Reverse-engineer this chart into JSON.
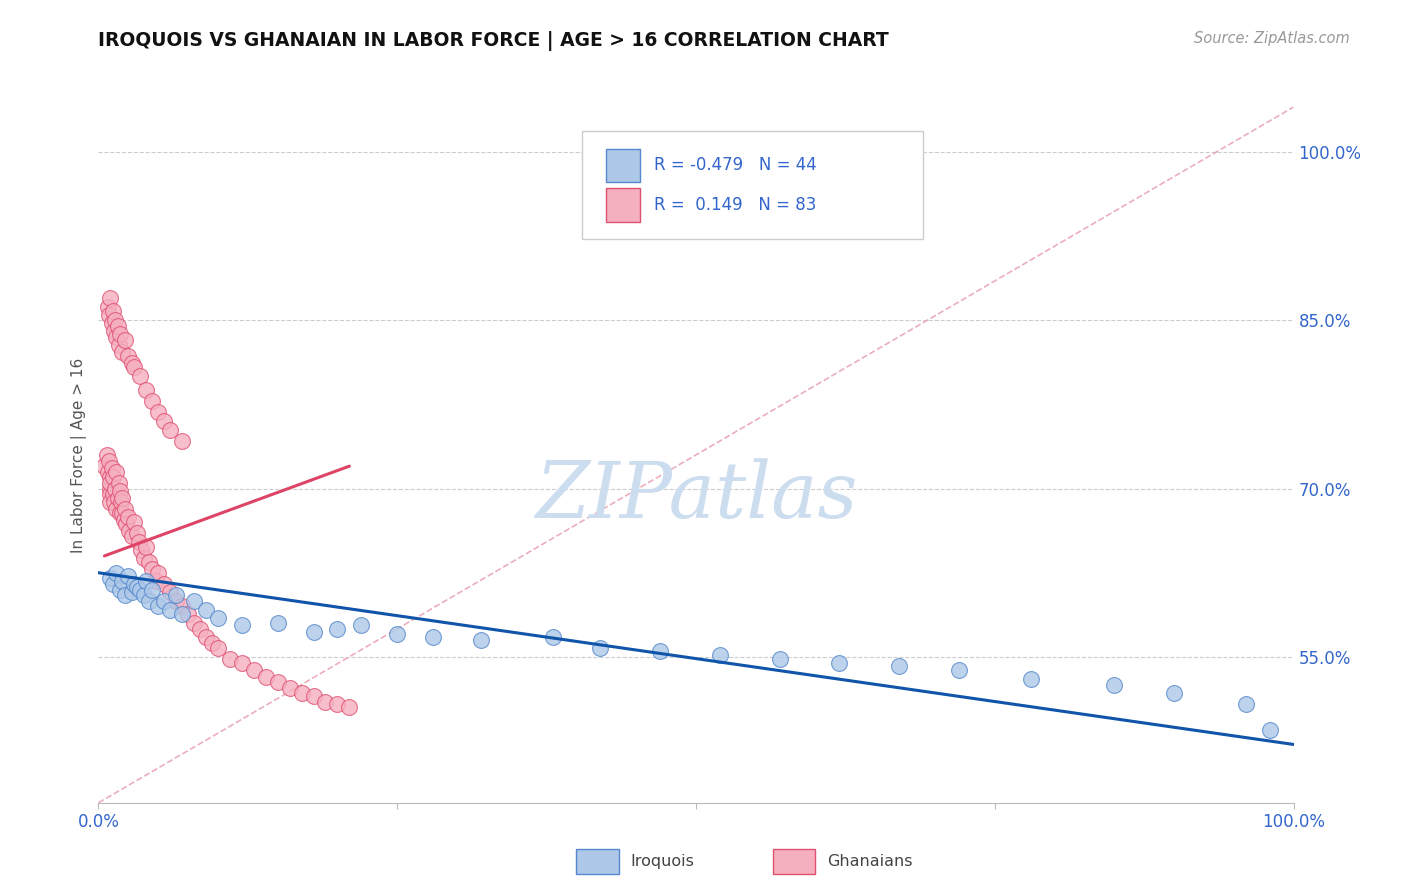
{
  "title": "IROQUOIS VS GHANAIAN IN LABOR FORCE | AGE > 16 CORRELATION CHART",
  "source": "Source: ZipAtlas.com",
  "ylabel": "In Labor Force | Age > 16",
  "xlim": [
    0.0,
    1.0
  ],
  "ylim": [
    0.42,
    1.04
  ],
  "yticks": [
    0.55,
    0.7,
    0.85,
    1.0
  ],
  "ytick_labels": [
    "55.0%",
    "70.0%",
    "85.0%",
    "100.0%"
  ],
  "legend_r_iroquois": "-0.479",
  "legend_n_iroquois": "44",
  "legend_r_ghanaian": "0.149",
  "legend_n_ghanaian": "83",
  "iroquois_fill": "#adc8e8",
  "iroquois_edge": "#5588cc",
  "ghanaian_fill": "#f5b0c0",
  "ghanaian_edge": "#e05070",
  "iroquois_line_color": "#1155aa",
  "ghanaian_line_color": "#dd4466",
  "ref_line_color": "#e8a0b0",
  "text_color_blue": "#3366cc",
  "watermark_color": "#ccddf0",
  "background_color": "#ffffff",
  "grid_color": "#cccccc",
  "iroquois_x": [
    0.01,
    0.012,
    0.015,
    0.018,
    0.02,
    0.022,
    0.025,
    0.028,
    0.03,
    0.032,
    0.035,
    0.038,
    0.04,
    0.042,
    0.045,
    0.05,
    0.055,
    0.06,
    0.065,
    0.07,
    0.08,
    0.09,
    0.1,
    0.12,
    0.15,
    0.18,
    0.2,
    0.22,
    0.25,
    0.28,
    0.32,
    0.38,
    0.42,
    0.47,
    0.52,
    0.57,
    0.62,
    0.67,
    0.72,
    0.78,
    0.85,
    0.9,
    0.96,
    0.98
  ],
  "iroquois_y": [
    0.62,
    0.615,
    0.625,
    0.61,
    0.618,
    0.605,
    0.622,
    0.608,
    0.615,
    0.612,
    0.61,
    0.605,
    0.618,
    0.6,
    0.61,
    0.595,
    0.6,
    0.592,
    0.605,
    0.588,
    0.6,
    0.592,
    0.585,
    0.578,
    0.58,
    0.572,
    0.575,
    0.578,
    0.57,
    0.568,
    0.565,
    0.568,
    0.558,
    0.555,
    0.552,
    0.548,
    0.545,
    0.542,
    0.538,
    0.53,
    0.525,
    0.518,
    0.508,
    0.485
  ],
  "ghanaian_x": [
    0.005,
    0.007,
    0.008,
    0.009,
    0.01,
    0.01,
    0.01,
    0.01,
    0.01,
    0.011,
    0.012,
    0.012,
    0.013,
    0.014,
    0.015,
    0.015,
    0.016,
    0.017,
    0.018,
    0.018,
    0.019,
    0.02,
    0.02,
    0.021,
    0.022,
    0.023,
    0.025,
    0.026,
    0.028,
    0.03,
    0.032,
    0.034,
    0.036,
    0.038,
    0.04,
    0.042,
    0.045,
    0.048,
    0.05,
    0.055,
    0.06,
    0.065,
    0.07,
    0.075,
    0.08,
    0.085,
    0.09,
    0.095,
    0.1,
    0.11,
    0.12,
    0.13,
    0.14,
    0.15,
    0.16,
    0.17,
    0.18,
    0.19,
    0.2,
    0.21,
    0.008,
    0.009,
    0.01,
    0.011,
    0.012,
    0.013,
    0.014,
    0.015,
    0.016,
    0.017,
    0.018,
    0.02,
    0.022,
    0.025,
    0.028,
    0.03,
    0.035,
    0.04,
    0.045,
    0.05,
    0.055,
    0.06,
    0.07
  ],
  "ghanaian_y": [
    0.72,
    0.73,
    0.715,
    0.725,
    0.7,
    0.71,
    0.695,
    0.705,
    0.688,
    0.718,
    0.695,
    0.71,
    0.688,
    0.7,
    0.715,
    0.682,
    0.692,
    0.705,
    0.678,
    0.698,
    0.688,
    0.678,
    0.692,
    0.672,
    0.682,
    0.668,
    0.675,
    0.662,
    0.658,
    0.67,
    0.66,
    0.652,
    0.645,
    0.638,
    0.648,
    0.635,
    0.628,
    0.618,
    0.625,
    0.615,
    0.608,
    0.6,
    0.595,
    0.588,
    0.58,
    0.575,
    0.568,
    0.562,
    0.558,
    0.548,
    0.545,
    0.538,
    0.532,
    0.528,
    0.522,
    0.518,
    0.515,
    0.51,
    0.508,
    0.505,
    0.862,
    0.855,
    0.87,
    0.848,
    0.858,
    0.84,
    0.85,
    0.835,
    0.845,
    0.828,
    0.838,
    0.822,
    0.832,
    0.818,
    0.812,
    0.808,
    0.8,
    0.788,
    0.778,
    0.768,
    0.76,
    0.752,
    0.742
  ],
  "iroquois_line_x": [
    0.0,
    1.0
  ],
  "iroquois_line_y": [
    0.625,
    0.472
  ],
  "ghanaian_line_x": [
    0.005,
    0.21
  ],
  "ghanaian_line_y": [
    0.64,
    0.72
  ],
  "ref_line_x": [
    0.0,
    1.0
  ],
  "ref_line_y": [
    0.42,
    1.04
  ]
}
